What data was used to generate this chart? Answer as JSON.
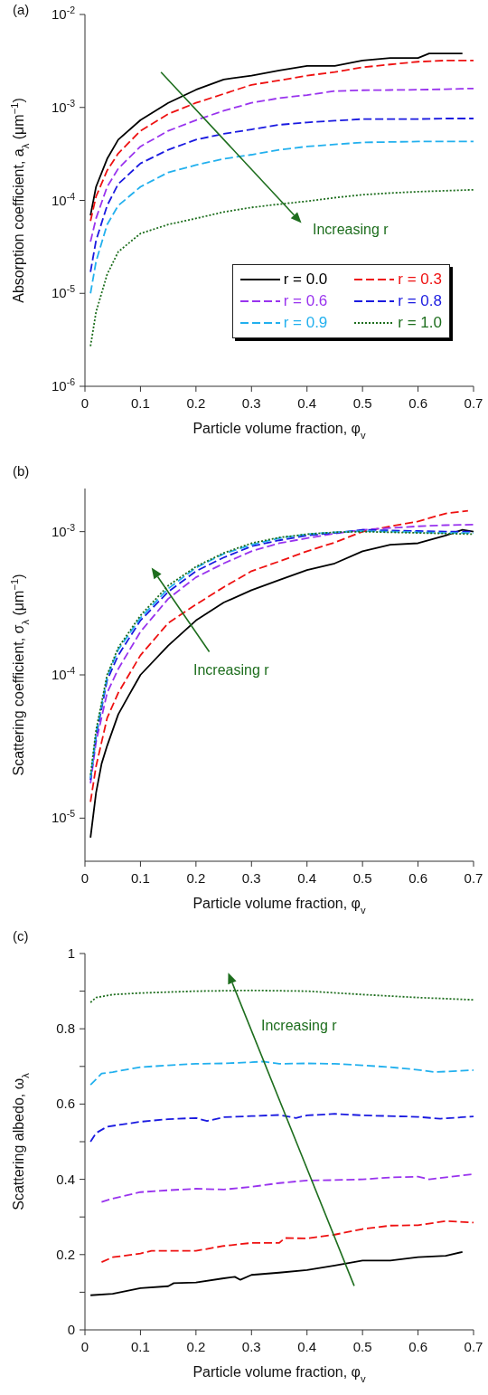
{
  "chart_data": [
    {
      "type": "line",
      "title": "(a)",
      "xlabel": "Particle volume fraction, φ$_{v}$",
      "ylabel": "Absorption coefficient, a$_{λ}$ (μm$^{−1}$)",
      "log": true,
      "legend": "bottom right",
      "xlim": [
        0,
        0.7
      ],
      "xticks": [
        0,
        0.1,
        0.2,
        0.3,
        0.4,
        0.5,
        0.6,
        0.7
      ],
      "ylim": [
        1e-06,
        0.01
      ],
      "yticks": [
        {
          "value": 1e-06,
          "label": "10$^{-6}$"
        },
        {
          "value": 1e-05,
          "label": "10$^{-5}$"
        },
        {
          "value": 0.0001,
          "label": "10$^{-4}$"
        },
        {
          "value": 0.001,
          "label": "10$^{-3}$"
        },
        {
          "value": 0.01,
          "label": "10$^{-2}$"
        }
      ],
      "annotations": [
        "Increasing r"
      ],
      "x": [
        0.01,
        0.02,
        0.04,
        0.06,
        0.1,
        0.15,
        0.2,
        0.25,
        0.3,
        0.35,
        0.4,
        0.45,
        0.5,
        0.55,
        0.6,
        0.65,
        0.7
      ],
      "series": [
        {
          "name": "r = 0.0",
          "color": "#000000",
          "line_style": "solid",
          "x": [
            0.01,
            0.02,
            0.04,
            0.06,
            0.1,
            0.15,
            0.2,
            0.25,
            0.3,
            0.35,
            0.4,
            0.45,
            0.5,
            0.55,
            0.6,
            0.62,
            0.68
          ],
          "values": [
            6.9e-05,
            0.00014,
            0.00028,
            0.00045,
            0.00073,
            0.00112,
            0.00155,
            0.002,
            0.0022,
            0.0025,
            0.0028,
            0.0028,
            0.0032,
            0.0034,
            0.0034,
            0.0038,
            0.0038
          ]
        },
        {
          "name": "r = 0.3",
          "color": "#ee1111",
          "line_style": "dashed",
          "values": [
            6e-05,
            0.00011,
            0.00021,
            0.00032,
            0.00056,
            0.00085,
            0.00112,
            0.0014,
            0.00175,
            0.00195,
            0.0022,
            0.0024,
            0.0027,
            0.0029,
            0.0031,
            0.0032,
            0.0032
          ]
        },
        {
          "name": "r = 0.6",
          "color": "#9933ee",
          "line_style": "dashed",
          "values": [
            3.6e-05,
            6.4e-05,
            0.00014,
            0.00022,
            0.00038,
            0.00056,
            0.00073,
            0.00092,
            0.00112,
            0.00126,
            0.00136,
            0.0015,
            0.00153,
            0.00154,
            0.00155,
            0.00157,
            0.0016
          ]
        },
        {
          "name": "r = 0.8",
          "color": "#1a1ae0",
          "line_style": "dashed",
          "values": [
            1.7e-05,
            3.7e-05,
            8.8e-05,
            0.00015,
            0.00025,
            0.00035,
            0.00045,
            0.00052,
            0.00058,
            0.00065,
            0.00069,
            0.00072,
            0.00075,
            0.00075,
            0.00075,
            0.00076,
            0.00076
          ]
        },
        {
          "name": "r = 0.9",
          "color": "#22b0ee",
          "line_style": "dashed",
          "values": [
            1e-05,
            2.2e-05,
            5.5e-05,
            8.8e-05,
            0.00014,
            0.0002,
            0.00024,
            0.00028,
            0.00031,
            0.00035,
            0.00038,
            0.0004,
            0.00042,
            0.000425,
            0.00043,
            0.00043,
            0.00043
          ]
        },
        {
          "name": "r = 1.0",
          "color": "#1e6e1e",
          "line_style": "dotted",
          "values": [
            2.7e-06,
            6.3e-06,
            1.6e-05,
            2.8e-05,
            4.4e-05,
            5.5e-05,
            6.4e-05,
            7.5e-05,
            8.4e-05,
            9.1e-05,
            9.8e-05,
            0.000107,
            0.000115,
            0.00012,
            0.000124,
            0.000127,
            0.00013
          ]
        }
      ]
    },
    {
      "type": "line",
      "title": "(b)",
      "xlabel": "Particle volume fraction, φ$_{v}$",
      "ylabel": "Scattering coefficient, σ$_{λ}$ (μm$^{−1}$)",
      "log": true,
      "xlim": [
        0,
        0.7
      ],
      "xticks": [
        0,
        0.1,
        0.2,
        0.3,
        0.4,
        0.5,
        0.6,
        0.7
      ],
      "ylim": [
        5e-06,
        0.002
      ],
      "yticks": [
        {
          "value": 1e-05,
          "label": "10$^{-5}$"
        },
        {
          "value": 0.0001,
          "label": "10$^{-4}$"
        },
        {
          "value": 0.001,
          "label": "10$^{-3}$"
        }
      ],
      "annotations": [
        "Increasing r"
      ],
      "x": [
        0.01,
        0.02,
        0.04,
        0.06,
        0.1,
        0.15,
        0.2,
        0.25,
        0.3,
        0.35,
        0.4,
        0.45,
        0.5,
        0.55,
        0.6,
        0.65,
        0.7
      ],
      "series": [
        {
          "color": "#000000",
          "line_style": "solid",
          "x": [
            0.01,
            0.02,
            0.03,
            0.04,
            0.06,
            0.08,
            0.1,
            0.15,
            0.2,
            0.25,
            0.3,
            0.35,
            0.4,
            0.45,
            0.5,
            0.55,
            0.6,
            0.65,
            0.68,
            0.7
          ],
          "values": [
            7.3e-06,
            1.5e-05,
            2.4e-05,
            3.2e-05,
            5.3e-05,
            7.3e-05,
            0.0001,
            0.00016,
            0.00024,
            0.00032,
            0.00039,
            0.00046,
            0.00054,
            0.0006,
            0.00073,
            0.00081,
            0.00083,
            0.00094,
            0.00103,
            0.001
          ]
        },
        {
          "color": "#ee1111",
          "line_style": "dashed",
          "x": [
            0.01,
            0.02,
            0.04,
            0.06,
            0.1,
            0.15,
            0.2,
            0.25,
            0.3,
            0.35,
            0.4,
            0.45,
            0.5,
            0.55,
            0.6,
            0.65,
            0.69
          ],
          "values": [
            1.3e-05,
            2.3e-05,
            5e-05,
            7.5e-05,
            0.000137,
            0.00023,
            0.00031,
            0.00041,
            0.00053,
            0.00062,
            0.00073,
            0.00084,
            0.001,
            0.00109,
            0.00118,
            0.00134,
            0.0014
          ]
        },
        {
          "color": "#9933ee",
          "line_style": "dashed",
          "values": [
            1.75e-05,
            3.4e-05,
            7.5e-05,
            0.00011,
            0.0002,
            0.00034,
            0.00048,
            0.0006,
            0.00073,
            0.00083,
            0.0009,
            0.00097,
            0.00103,
            0.00106,
            0.00109,
            0.00111,
            0.00112
          ]
        },
        {
          "color": "#1a1ae0",
          "line_style": "dashed",
          "values": [
            1.85e-05,
            3.7e-05,
            9.2e-05,
            0.000137,
            0.00024,
            0.00038,
            0.00053,
            0.00066,
            0.00079,
            0.00087,
            0.00094,
            0.00098,
            0.00103,
            0.00102,
            0.00101,
            0.001,
            0.001
          ]
        },
        {
          "color": "#22b0ee",
          "line_style": "dashed",
          "values": [
            1.9e-05,
            3.9e-05,
            9.7e-05,
            0.00015,
            0.00025,
            0.0004,
            0.00056,
            0.0007,
            0.00081,
            0.0009,
            0.00096,
            0.00099,
            0.00101,
            0.001,
            0.00099,
            0.00098,
            0.00098
          ]
        },
        {
          "color": "#1e6e1e",
          "line_style": "dotted",
          "values": [
            2e-05,
            4.1e-05,
            0.0001,
            0.000155,
            0.00026,
            0.00042,
            0.00057,
            0.00071,
            0.00083,
            0.00091,
            0.00096,
            0.00099,
            0.001,
            0.00099,
            0.00098,
            0.00097,
            0.00096
          ]
        }
      ]
    },
    {
      "type": "line",
      "title": "(c)",
      "xlabel": "Particle volume fraction, φ$_{v}$",
      "ylabel": "Scattering albedo, ω$_{λ}$",
      "xlim": [
        0,
        0.7
      ],
      "xticks": [
        0,
        0.1,
        0.2,
        0.3,
        0.4,
        0.5,
        0.6,
        0.7
      ],
      "ylim": [
        0,
        1
      ],
      "yticks": [
        0,
        {
          "value": 0.1,
          "label": null
        },
        0.2,
        {
          "value": 0.3,
          "label": null
        },
        0.4,
        {
          "value": 0.5,
          "label": null
        },
        0.6,
        {
          "value": 0.7,
          "label": null
        },
        0.8,
        {
          "value": 0.9,
          "label": null
        },
        1
      ],
      "annotations": [
        "Increasing r"
      ],
      "series": [
        {
          "color": "#000000",
          "line_style": "solid",
          "x": [
            0.01,
            0.05,
            0.1,
            0.15,
            0.16,
            0.2,
            0.25,
            0.27,
            0.28,
            0.3,
            0.35,
            0.4,
            0.45,
            0.5,
            0.55,
            0.6,
            0.65,
            0.68
          ],
          "values": [
            0.092,
            0.096,
            0.111,
            0.116,
            0.124,
            0.126,
            0.137,
            0.141,
            0.133,
            0.146,
            0.152,
            0.159,
            0.171,
            0.184,
            0.184,
            0.193,
            0.197,
            0.207
          ]
        },
        {
          "color": "#ee1111",
          "line_style": "dashed",
          "x": [
            0.03,
            0.05,
            0.1,
            0.12,
            0.2,
            0.25,
            0.3,
            0.35,
            0.36,
            0.4,
            0.45,
            0.5,
            0.55,
            0.6,
            0.65,
            0.7
          ],
          "values": [
            0.18,
            0.193,
            0.203,
            0.21,
            0.21,
            0.223,
            0.231,
            0.231,
            0.244,
            0.243,
            0.253,
            0.268,
            0.277,
            0.278,
            0.289,
            0.285
          ]
        },
        {
          "color": "#9933ee",
          "line_style": "dashed",
          "x": [
            0.03,
            0.05,
            0.1,
            0.15,
            0.2,
            0.25,
            0.3,
            0.35,
            0.4,
            0.45,
            0.5,
            0.55,
            0.6,
            0.62,
            0.7
          ],
          "values": [
            0.34,
            0.349,
            0.366,
            0.371,
            0.375,
            0.373,
            0.38,
            0.39,
            0.397,
            0.398,
            0.4,
            0.405,
            0.407,
            0.4,
            0.414
          ]
        },
        {
          "color": "#1a1ae0",
          "line_style": "dashed",
          "x": [
            0.01,
            0.02,
            0.04,
            0.1,
            0.15,
            0.2,
            0.22,
            0.25,
            0.3,
            0.35,
            0.38,
            0.4,
            0.45,
            0.5,
            0.6,
            0.64,
            0.7
          ],
          "values": [
            0.5,
            0.523,
            0.54,
            0.553,
            0.56,
            0.563,
            0.555,
            0.565,
            0.568,
            0.571,
            0.563,
            0.57,
            0.574,
            0.57,
            0.566,
            0.561,
            0.567
          ]
        },
        {
          "color": "#22b0ee",
          "line_style": "dashed",
          "x": [
            0.01,
            0.03,
            0.05,
            0.1,
            0.15,
            0.2,
            0.25,
            0.3,
            0.32,
            0.35,
            0.4,
            0.45,
            0.5,
            0.55,
            0.6,
            0.63,
            0.7
          ],
          "values": [
            0.651,
            0.681,
            0.685,
            0.698,
            0.703,
            0.707,
            0.708,
            0.711,
            0.713,
            0.707,
            0.708,
            0.707,
            0.703,
            0.698,
            0.691,
            0.685,
            0.69
          ]
        },
        {
          "color": "#1e6e1e",
          "line_style": "dotted",
          "x": [
            0.01,
            0.02,
            0.05,
            0.1,
            0.2,
            0.3,
            0.4,
            0.5,
            0.6,
            0.7
          ],
          "values": [
            0.87,
            0.883,
            0.891,
            0.895,
            0.9,
            0.902,
            0.9,
            0.891,
            0.883,
            0.877
          ]
        }
      ]
    }
  ]
}
